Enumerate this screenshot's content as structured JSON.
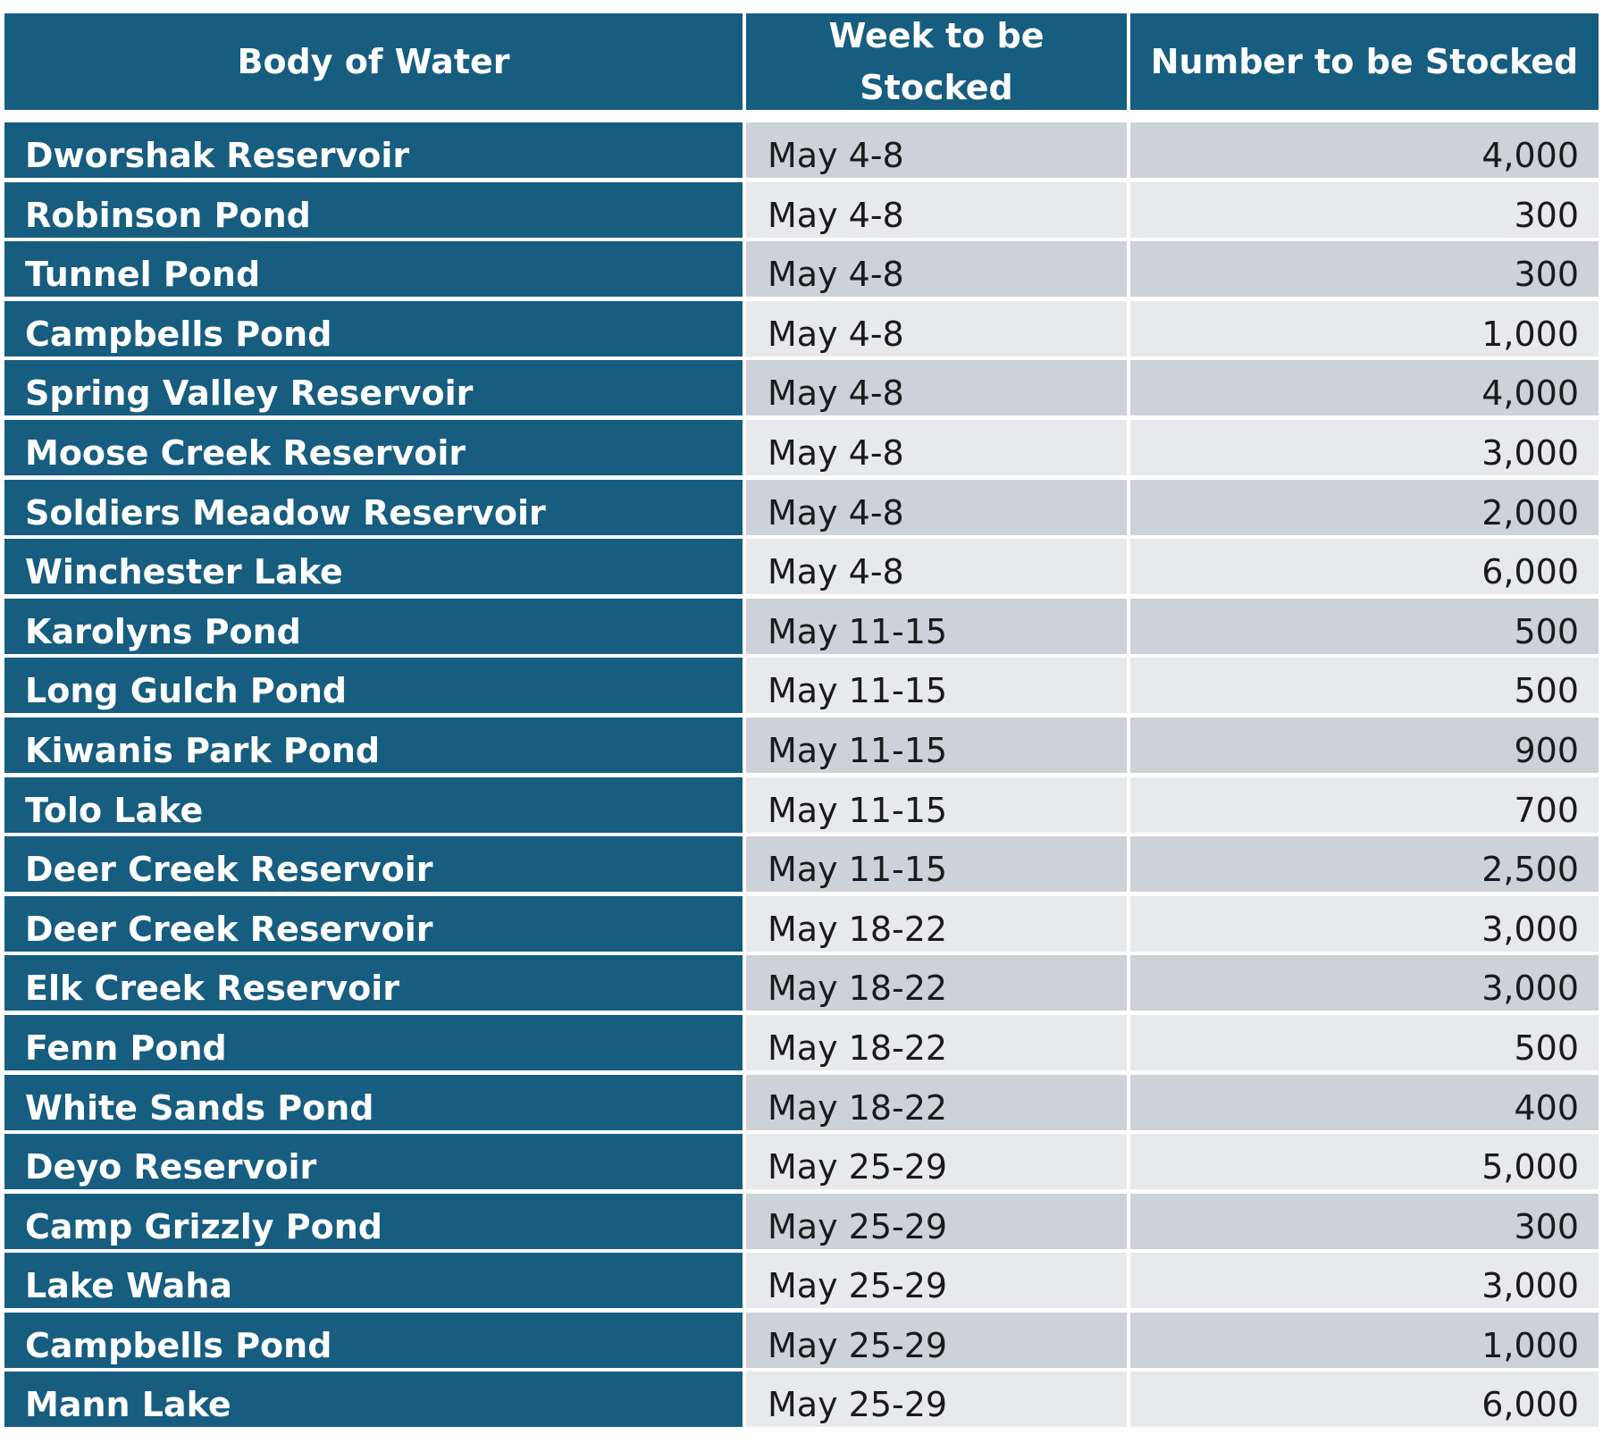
{
  "header": {
    "col1": "Body of Water",
    "col2_line1": "Week to be",
    "col2_line2": "Stocked",
    "col3": "Number to be Stocked"
  },
  "rows": [
    {
      "name": "Dworshak Reservoir",
      "week": "May 4-8",
      "number": "4,000"
    },
    {
      "name": "Robinson Pond",
      "week": "May 4-8",
      "number": "300"
    },
    {
      "name": "Tunnel Pond",
      "week": "May 4-8",
      "number": "300"
    },
    {
      "name": "Campbells Pond",
      "week": "May 4-8",
      "number": "1,000"
    },
    {
      "name": "Spring Valley Reservoir",
      "week": "May 4-8",
      "number": "4,000"
    },
    {
      "name": "Moose Creek Reservoir",
      "week": "May 4-8",
      "number": "3,000"
    },
    {
      "name": "Soldiers Meadow Reservoir",
      "week": "May 4-8",
      "number": "2,000"
    },
    {
      "name": "Winchester Lake",
      "week": "May 4-8",
      "number": "6,000"
    },
    {
      "name": "Karolyns Pond",
      "week": "May 11-15",
      "number": "500"
    },
    {
      "name": "Long Gulch Pond",
      "week": "May 11-15",
      "number": "500"
    },
    {
      "name": "Kiwanis Park Pond",
      "week": "May 11-15",
      "number": "900"
    },
    {
      "name": "Tolo Lake",
      "week": "May 11-15",
      "number": "700"
    },
    {
      "name": "Deer Creek Reservoir",
      "week": "May 11-15",
      "number": "2,500"
    },
    {
      "name": "Deer Creek Reservoir",
      "week": "May 18-22",
      "number": "3,000"
    },
    {
      "name": "Elk Creek Reservoir",
      "week": "May 18-22",
      "number": "3,000"
    },
    {
      "name": "Fenn Pond",
      "week": "May 18-22",
      "number": "500"
    },
    {
      "name": "White Sands Pond",
      "week": "May 18-22",
      "number": "400"
    },
    {
      "name": "Deyo Reservoir",
      "week": "May 25-29",
      "number": "5,000"
    },
    {
      "name": "Camp Grizzly Pond",
      "week": "May 25-29",
      "number": "300"
    },
    {
      "name": "Lake Waha",
      "week": "May 25-29",
      "number": "3,000"
    },
    {
      "name": "Campbells Pond",
      "week": "May 25-29",
      "number": "1,000"
    },
    {
      "name": "Mann Lake",
      "week": "May 25-29",
      "number": "6,000"
    }
  ]
}
